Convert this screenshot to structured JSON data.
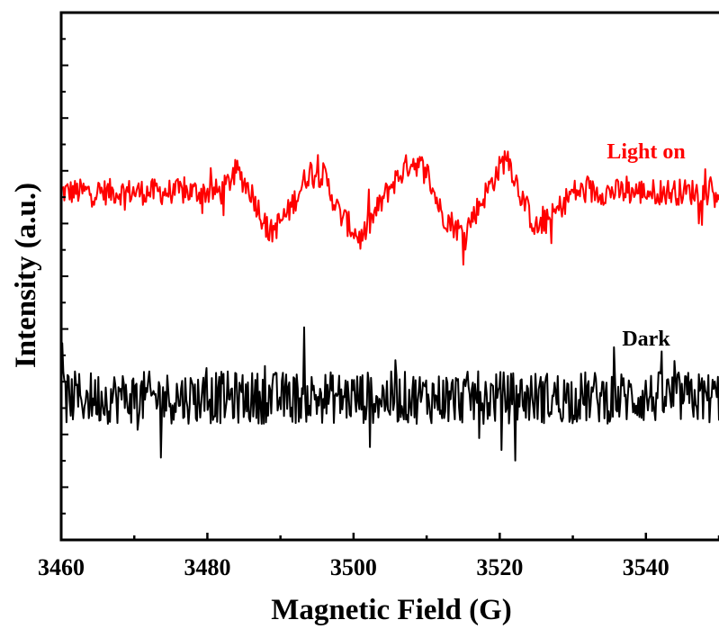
{
  "chart_data": {
    "type": "line",
    "title": "",
    "xlabel": "Magnetic Field (G)",
    "ylabel": "Intensity (a.u.)",
    "xlim": [
      3460,
      3550
    ],
    "ylim": [
      0,
      1
    ],
    "x_ticks": [
      3460,
      3480,
      3500,
      3520,
      3540
    ],
    "x_tick_labels": [
      "3460",
      "3480",
      "3500",
      "3520",
      "3540"
    ],
    "y_ticks_labeled": false,
    "grid": false,
    "legend": "none",
    "series": [
      {
        "name": "Light on",
        "color": "#ff0000",
        "baseline": 0.66,
        "noise_amplitude": 0.025,
        "x": [
          3460,
          3482,
          3484,
          3486,
          3488.5,
          3491,
          3494,
          3496,
          3498,
          3501,
          3503,
          3505,
          3508,
          3510,
          3512,
          3515,
          3517,
          3519,
          3521,
          3523,
          3525,
          3527,
          3530,
          3550
        ],
        "y": [
          0.66,
          0.66,
          0.7,
          0.66,
          0.58,
          0.62,
          0.7,
          0.69,
          0.62,
          0.57,
          0.62,
          0.67,
          0.72,
          0.7,
          0.62,
          0.58,
          0.63,
          0.68,
          0.73,
          0.65,
          0.59,
          0.61,
          0.66,
          0.66
        ]
      },
      {
        "name": "Dark",
        "color": "#000000",
        "baseline": 0.27,
        "noise_amplitude": 0.05,
        "x": [
          3460,
          3550
        ],
        "y": [
          0.27,
          0.27
        ]
      }
    ],
    "annotations": [
      {
        "text": "Light on",
        "color": "#ff0000",
        "series": "Light on"
      },
      {
        "text": "Dark",
        "color": "#000000",
        "series": "Dark"
      }
    ]
  }
}
